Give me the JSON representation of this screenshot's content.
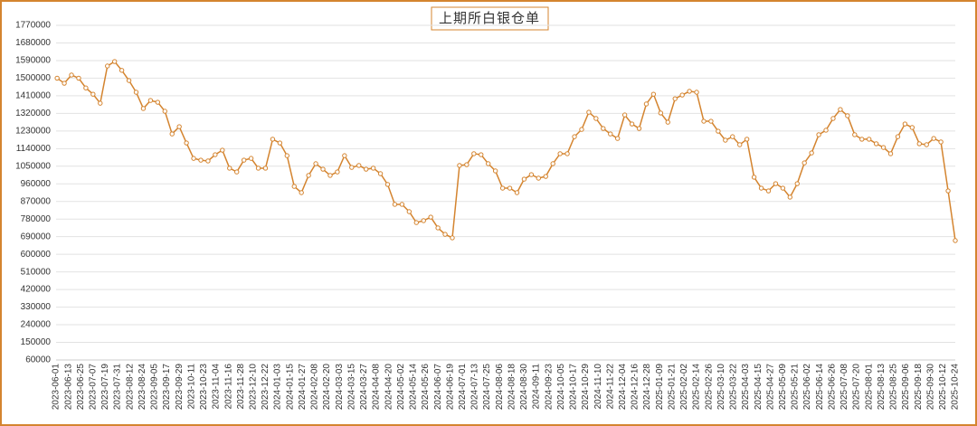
{
  "chart_data": {
    "type": "line",
    "title": "上期所白银仓单",
    "color": "#d4842f",
    "grid": true,
    "ylim": [
      60000,
      1770000
    ],
    "yticks": [
      60000,
      150000,
      240000,
      330000,
      420000,
      510000,
      600000,
      690000,
      780000,
      870000,
      960000,
      1050000,
      1140000,
      1230000,
      1320000,
      1410000,
      1500000,
      1590000,
      1680000,
      1770000
    ],
    "xlim": [
      "2023-06-01",
      "2025-10-24"
    ],
    "xticks": [
      "2023-06-01",
      "2023-06-13",
      "2023-06-25",
      "2023-07-07",
      "2023-07-19",
      "2023-07-31",
      "2023-08-12",
      "2023-08-24",
      "2023-09-05",
      "2023-09-17",
      "2023-09-29",
      "2023-10-11",
      "2023-10-23",
      "2023-11-04",
      "2023-11-16",
      "2023-11-28",
      "2023-12-10",
      "2023-12-22",
      "2024-01-03",
      "2024-01-15",
      "2024-01-27",
      "2024-02-08",
      "2024-02-20",
      "2024-03-03",
      "2024-03-15",
      "2024-03-27",
      "2024-04-08",
      "2024-04-20",
      "2024-05-02",
      "2024-05-14",
      "2024-05-26",
      "2024-06-07",
      "2024-06-19",
      "2024-07-01",
      "2024-07-13",
      "2024-07-25",
      "2024-08-06",
      "2024-08-18",
      "2024-08-30",
      "2024-09-11",
      "2024-09-23",
      "2024-10-05",
      "2024-10-17",
      "2024-10-29",
      "2024-11-10",
      "2024-11-22",
      "2024-12-04",
      "2024-12-16",
      "2024-12-28",
      "2025-01-09",
      "2025-01-21",
      "2025-02-02",
      "2025-02-14",
      "2025-02-26",
      "2025-03-10",
      "2025-03-22",
      "2025-04-03",
      "2025-04-15",
      "2025-04-27",
      "2025-05-09",
      "2025-05-21",
      "2025-06-02",
      "2025-06-14",
      "2025-06-26",
      "2025-07-08",
      "2025-07-20",
      "2025-08-01",
      "2025-08-13",
      "2025-08-25",
      "2025-09-06",
      "2025-09-18",
      "2025-09-30",
      "2025-10-12",
      "2025-10-24"
    ],
    "x": [
      "2023-06-02",
      "2023-06-09",
      "2023-06-16",
      "2023-06-23",
      "2023-06-30",
      "2023-07-07",
      "2023-07-14",
      "2023-07-21",
      "2023-07-28",
      "2023-08-04",
      "2023-08-11",
      "2023-08-18",
      "2023-08-25",
      "2023-09-01",
      "2023-09-08",
      "2023-09-15",
      "2023-09-22",
      "2023-09-29",
      "2023-10-06",
      "2023-10-13",
      "2023-10-20",
      "2023-10-27",
      "2023-11-03",
      "2023-11-10",
      "2023-11-17",
      "2023-11-24",
      "2023-12-01",
      "2023-12-08",
      "2023-12-15",
      "2023-12-22",
      "2023-12-29",
      "2024-01-05",
      "2024-01-12",
      "2024-01-19",
      "2024-01-26",
      "2024-02-02",
      "2024-02-09",
      "2024-02-16",
      "2024-02-23",
      "2024-03-01",
      "2024-03-08",
      "2024-03-15",
      "2024-03-22",
      "2024-03-29",
      "2024-04-05",
      "2024-04-12",
      "2024-04-19",
      "2024-04-26",
      "2024-05-03",
      "2024-05-10",
      "2024-05-17",
      "2024-05-24",
      "2024-05-31",
      "2024-06-07",
      "2024-06-14",
      "2024-06-21",
      "2024-06-28",
      "2024-07-05",
      "2024-07-12",
      "2024-07-19",
      "2024-07-26",
      "2024-08-02",
      "2024-08-09",
      "2024-08-16",
      "2024-08-23",
      "2024-08-30",
      "2024-09-06",
      "2024-09-13",
      "2024-09-20",
      "2024-09-27",
      "2024-10-04",
      "2024-10-11",
      "2024-10-18",
      "2024-10-25",
      "2024-11-01",
      "2024-11-08",
      "2024-11-15",
      "2024-11-22",
      "2024-11-29",
      "2024-12-06",
      "2024-12-13",
      "2024-12-20",
      "2024-12-27",
      "2025-01-03",
      "2025-01-10",
      "2025-01-17",
      "2025-01-24",
      "2025-01-31",
      "2025-02-07",
      "2025-02-14",
      "2025-02-21",
      "2025-02-28",
      "2025-03-07",
      "2025-03-14",
      "2025-03-21",
      "2025-03-28",
      "2025-04-04",
      "2025-04-11",
      "2025-04-18",
      "2025-04-25",
      "2025-05-02",
      "2025-05-09",
      "2025-05-16",
      "2025-05-23",
      "2025-05-30",
      "2025-06-06",
      "2025-06-13",
      "2025-06-20",
      "2025-06-27",
      "2025-07-04",
      "2025-07-11",
      "2025-07-18",
      "2025-07-25",
      "2025-08-01",
      "2025-08-08",
      "2025-08-15",
      "2025-08-22",
      "2025-08-29",
      "2025-09-05",
      "2025-09-12",
      "2025-09-19",
      "2025-09-26",
      "2025-10-03",
      "2025-10-10",
      "2025-10-17",
      "2025-10-24"
    ],
    "values": [
      1500000,
      1474000,
      1516000,
      1500000,
      1450000,
      1418000,
      1372000,
      1562000,
      1585000,
      1540000,
      1488000,
      1428000,
      1345000,
      1386000,
      1377000,
      1331000,
      1215000,
      1252000,
      1169000,
      1090000,
      1081000,
      1077000,
      1109000,
      1132000,
      1040000,
      1021000,
      1081000,
      1090000,
      1040000,
      1040000,
      1188000,
      1169000,
      1104000,
      947000,
      915000,
      1003000,
      1063000,
      1035000,
      1003000,
      1021000,
      1104000,
      1044000,
      1054000,
      1035000,
      1040000,
      1012000,
      957000,
      855000,
      855000,
      818000,
      762000,
      772000,
      790000,
      735000,
      702000,
      684000,
      1054000,
      1058000,
      1114000,
      1109000,
      1063000,
      1026000,
      938000,
      938000,
      915000,
      984000,
      1007000,
      989000,
      998000,
      1063000,
      1114000,
      1114000,
      1201000,
      1238000,
      1326000,
      1294000,
      1243000,
      1215000,
      1192000,
      1312000,
      1266000,
      1243000,
      1368000,
      1418000,
      1322000,
      1275000,
      1395000,
      1414000,
      1433000,
      1428000,
      1280000,
      1280000,
      1229000,
      1183000,
      1201000,
      1160000,
      1188000,
      994000,
      938000,
      924000,
      961000,
      938000,
      892000,
      961000,
      1067000,
      1118000,
      1211000,
      1234000,
      1294000,
      1340000,
      1308000,
      1211000,
      1188000,
      1188000,
      1165000,
      1146000,
      1114000,
      1201000,
      1266000,
      1248000,
      1165000,
      1160000,
      1192000,
      1174000,
      924000,
      670000
    ]
  }
}
